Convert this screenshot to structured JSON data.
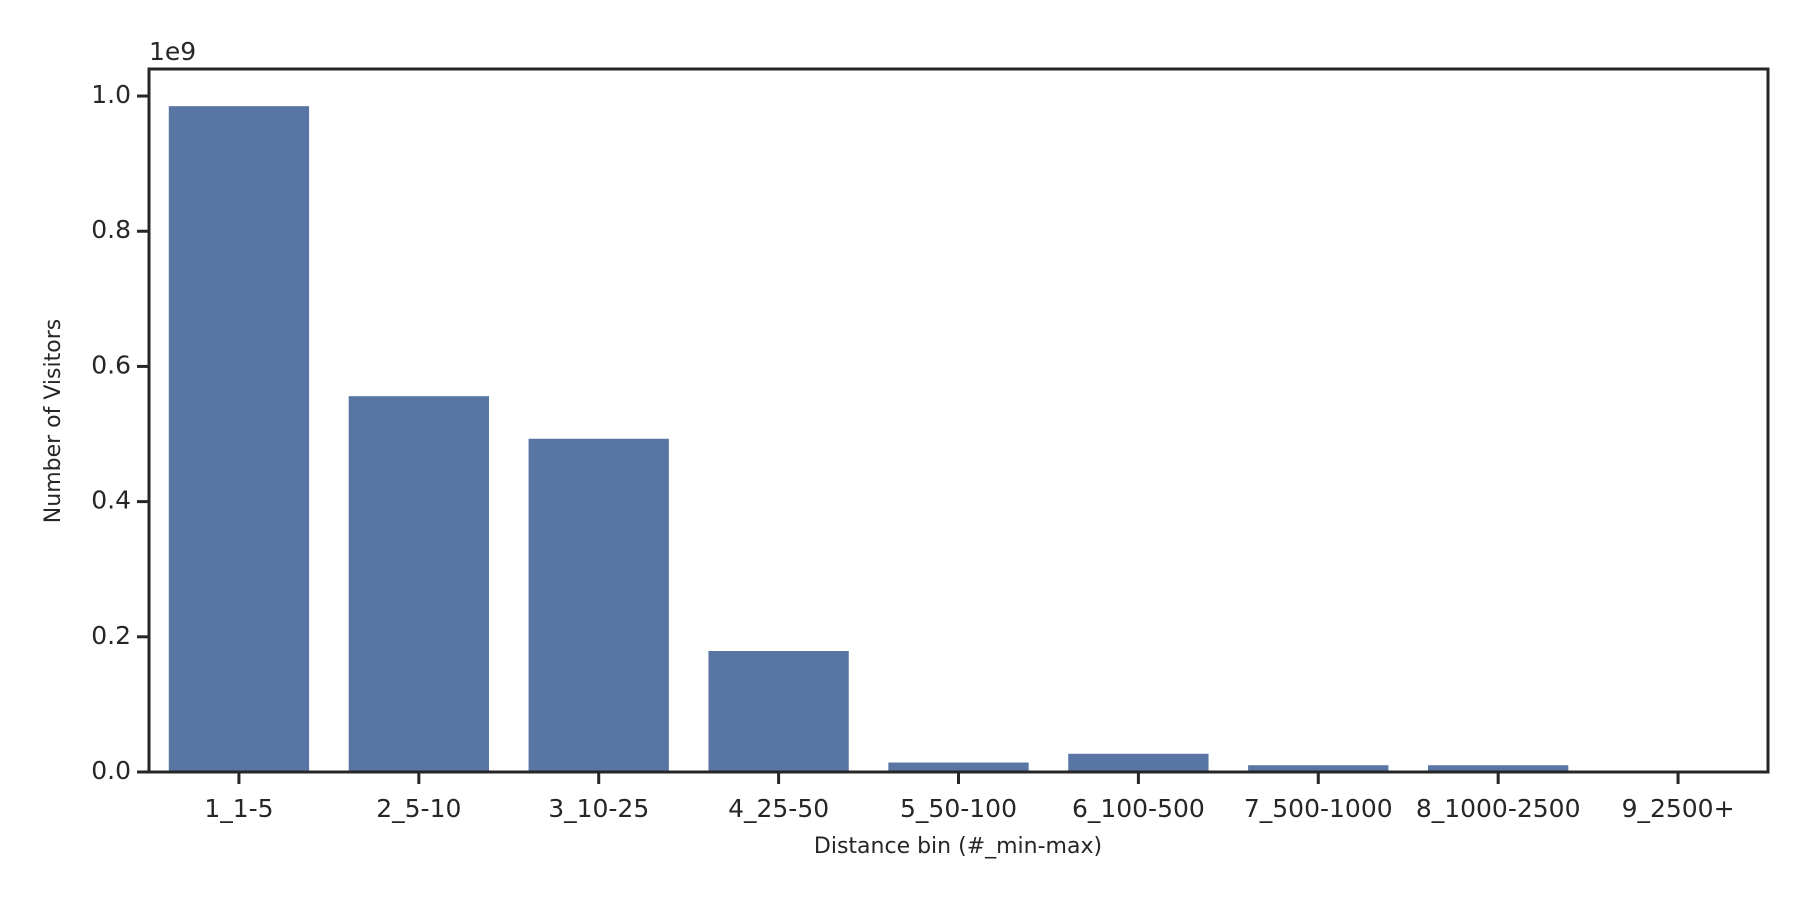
{
  "chart_data": {
    "type": "bar",
    "x_label": "Distance bin (#_min-max)",
    "y_label": "Number of Visitors",
    "y_offset_label": "1e9",
    "categories": [
      "1_1-5",
      "2_5-10",
      "3_10-25",
      "4_25-50",
      "5_50-100",
      "6_100-500",
      "7_500-1000",
      "8_1000-2500",
      "9_2500+"
    ],
    "values": [
      0.985,
      0.556,
      0.493,
      0.179,
      0.014,
      0.027,
      0.01,
      0.01,
      0.001
    ],
    "color": "#5875a4",
    "ylim": [
      0,
      1.04
    ],
    "yticks": [
      {
        "value": 0,
        "label": "0.0"
      },
      0.2,
      0.4,
      0.6,
      0.8,
      {
        "value": 1,
        "label": "1.0"
      }
    ]
  }
}
